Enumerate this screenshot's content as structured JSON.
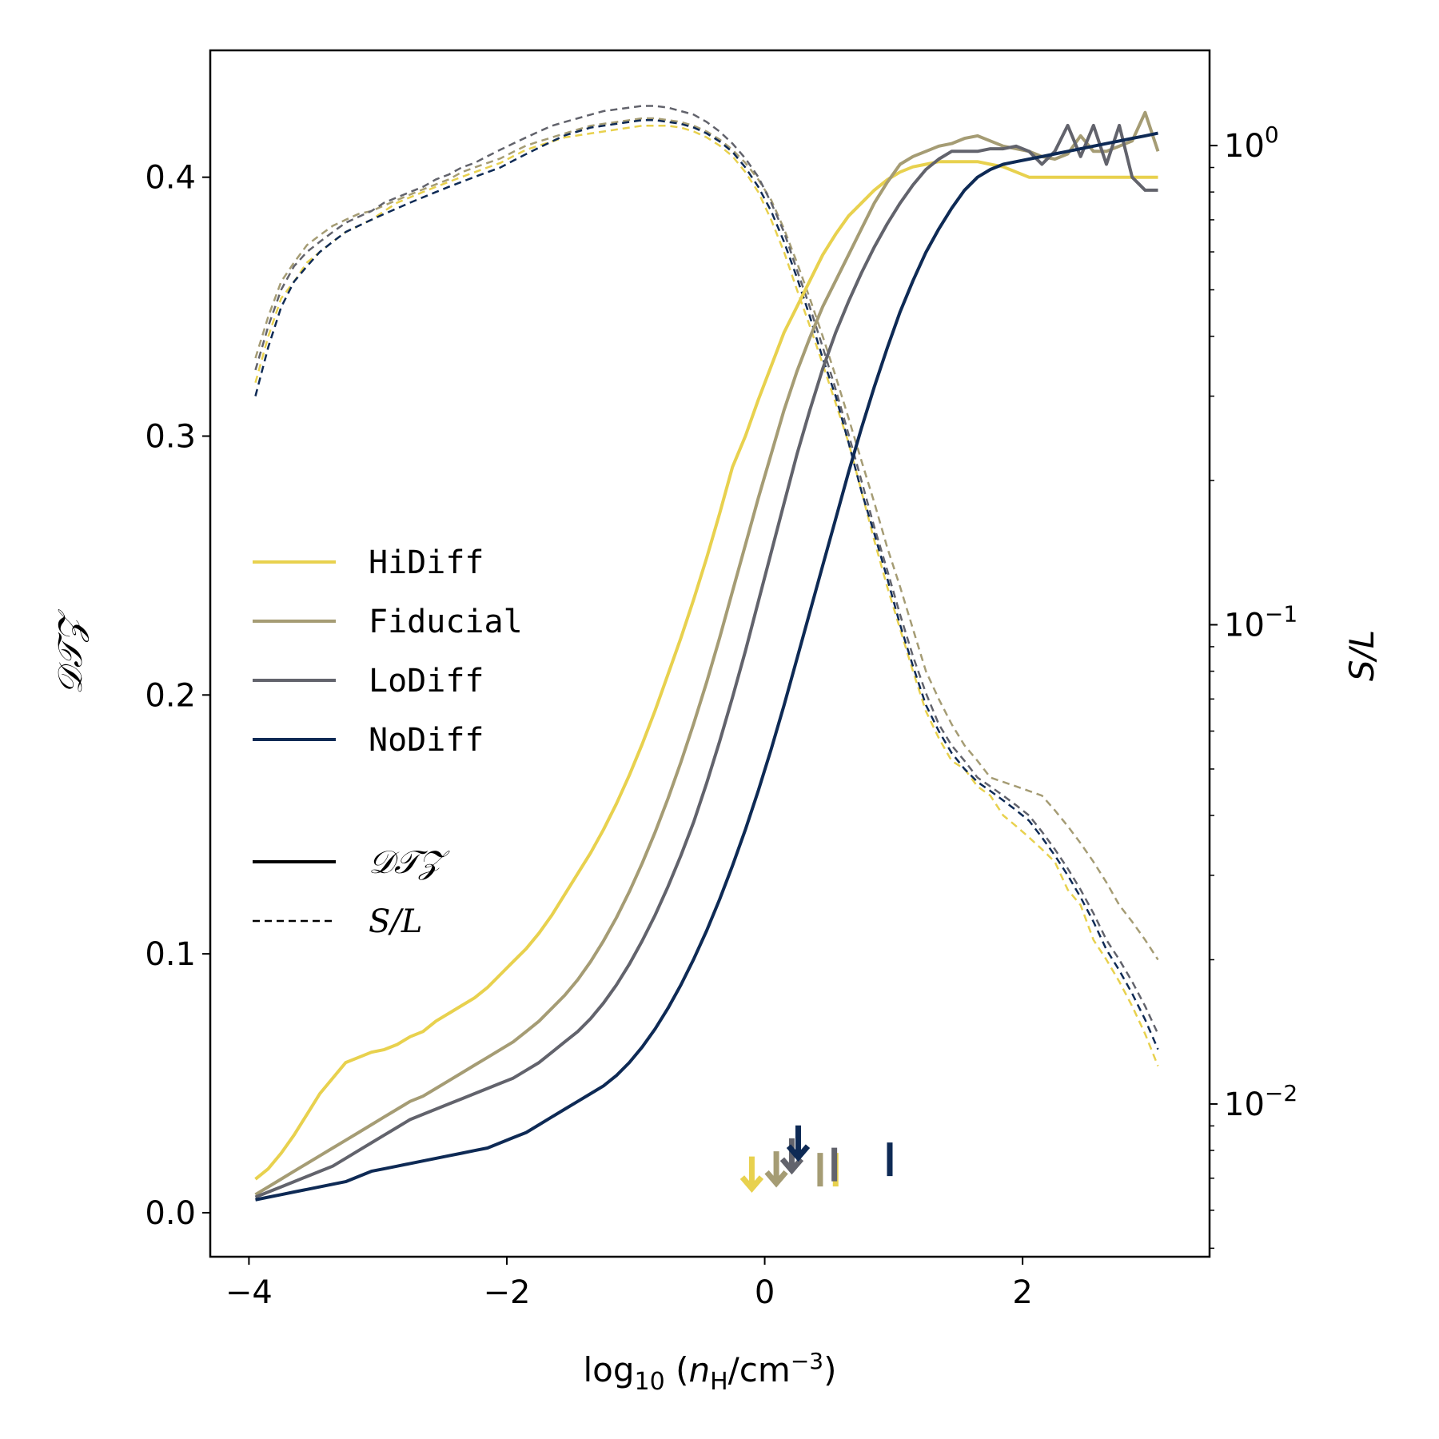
{
  "chart_data": {
    "type": "line",
    "x_axis": {
      "label": "log10 (n_H/cm^-3)",
      "label_parts": {
        "base": "log",
        "sub": "10",
        "open": " (",
        "var": "n",
        "var_sub": "H",
        "unit": "/cm",
        "unit_sup": "−3",
        "close": ")"
      },
      "xlim": [
        -4.3,
        3.45
      ],
      "ticks": [
        -4,
        -2,
        0,
        2
      ],
      "tick_labels": [
        "−4",
        "−2",
        "0",
        "2"
      ]
    },
    "y_left": {
      "label": "DTZ",
      "label_display": "𝒟𝒯𝒵",
      "ylim": [
        -0.017,
        0.449
      ],
      "ticks": [
        0.0,
        0.1,
        0.2,
        0.3,
        0.4
      ],
      "tick_labels": [
        "0.0",
        "0.1",
        "0.2",
        "0.3",
        "0.4"
      ]
    },
    "y_right": {
      "label": "S/L",
      "scale": "log",
      "ylim": [
        0.0048,
        1.58
      ],
      "ticks": [
        0.01,
        0.1,
        1.0
      ],
      "tick_labels": [
        {
          "base": "10",
          "exp": "−2"
        },
        {
          "base": "10",
          "exp": "−1"
        },
        {
          "base": "10",
          "exp": "0"
        }
      ]
    },
    "x": [
      -3.95,
      -3.85,
      -3.75,
      -3.65,
      -3.55,
      -3.45,
      -3.35,
      -3.25,
      -3.15,
      -3.05,
      -2.95,
      -2.85,
      -2.75,
      -2.65,
      -2.55,
      -2.45,
      -2.35,
      -2.25,
      -2.15,
      -2.05,
      -1.95,
      -1.85,
      -1.75,
      -1.65,
      -1.55,
      -1.45,
      -1.35,
      -1.25,
      -1.15,
      -1.05,
      -0.95,
      -0.85,
      -0.75,
      -0.65,
      -0.55,
      -0.45,
      -0.35,
      -0.25,
      -0.15,
      -0.05,
      0.05,
      0.15,
      0.25,
      0.35,
      0.45,
      0.55,
      0.65,
      0.75,
      0.85,
      0.95,
      1.05,
      1.15,
      1.25,
      1.35,
      1.45,
      1.55,
      1.65,
      1.75,
      1.85,
      1.95,
      2.05,
      2.15,
      2.25,
      2.35,
      2.45,
      2.55,
      2.65,
      2.75,
      2.85,
      2.95,
      3.05
    ],
    "series": [
      {
        "name": "HiDiff",
        "color": "#e8d14e",
        "dtz": [
          0.013,
          0.017,
          0.023,
          0.03,
          0.038,
          0.046,
          0.052,
          0.058,
          0.06,
          0.062,
          0.063,
          0.065,
          0.068,
          0.07,
          0.074,
          0.077,
          0.08,
          0.083,
          0.087,
          0.092,
          0.097,
          0.102,
          0.108,
          0.115,
          0.123,
          0.131,
          0.139,
          0.148,
          0.158,
          0.169,
          0.181,
          0.194,
          0.208,
          0.222,
          0.237,
          0.253,
          0.27,
          0.288,
          0.3,
          0.314,
          0.327,
          0.34,
          0.35,
          0.36,
          0.37,
          0.378,
          0.385,
          0.39,
          0.395,
          0.399,
          0.402,
          0.404,
          0.405,
          0.406,
          0.406,
          0.406,
          0.406,
          0.405,
          0.404,
          0.402,
          0.4,
          0.4,
          0.4,
          0.4,
          0.4,
          0.4,
          0.4,
          0.4,
          0.4,
          0.4,
          0.4
        ],
        "sl": [
          0.32,
          0.4,
          0.48,
          0.52,
          0.57,
          0.6,
          0.63,
          0.66,
          0.68,
          0.7,
          0.73,
          0.76,
          0.78,
          0.8,
          0.82,
          0.84,
          0.86,
          0.88,
          0.9,
          0.92,
          0.95,
          0.98,
          1.0,
          1.02,
          1.04,
          1.05,
          1.06,
          1.07,
          1.08,
          1.09,
          1.1,
          1.1,
          1.1,
          1.09,
          1.07,
          1.04,
          1.0,
          0.95,
          0.88,
          0.8,
          0.7,
          0.6,
          0.5,
          0.42,
          0.35,
          0.29,
          0.24,
          0.19,
          0.15,
          0.12,
          0.098,
          0.08,
          0.066,
          0.058,
          0.052,
          0.05,
          0.046,
          0.044,
          0.04,
          0.038,
          0.036,
          0.034,
          0.032,
          0.028,
          0.026,
          0.022,
          0.02,
          0.018,
          0.016,
          0.014,
          0.012
        ]
      },
      {
        "name": "Fiducial",
        "color": "#a59c74",
        "dtz": [
          0.007,
          0.01,
          0.013,
          0.016,
          0.019,
          0.022,
          0.025,
          0.028,
          0.031,
          0.034,
          0.037,
          0.04,
          0.043,
          0.045,
          0.048,
          0.051,
          0.054,
          0.057,
          0.06,
          0.063,
          0.066,
          0.07,
          0.074,
          0.079,
          0.084,
          0.09,
          0.097,
          0.105,
          0.114,
          0.124,
          0.135,
          0.147,
          0.16,
          0.174,
          0.189,
          0.205,
          0.222,
          0.24,
          0.258,
          0.276,
          0.293,
          0.31,
          0.325,
          0.338,
          0.35,
          0.36,
          0.37,
          0.38,
          0.39,
          0.398,
          0.405,
          0.408,
          0.41,
          0.412,
          0.413,
          0.415,
          0.416,
          0.414,
          0.412,
          0.411,
          0.41,
          0.408,
          0.407,
          0.409,
          0.416,
          0.41,
          0.41,
          0.412,
          0.414,
          0.425,
          0.41
        ],
        "sl": [
          0.36,
          0.44,
          0.52,
          0.57,
          0.62,
          0.65,
          0.68,
          0.7,
          0.72,
          0.73,
          0.75,
          0.77,
          0.79,
          0.81,
          0.83,
          0.85,
          0.88,
          0.9,
          0.92,
          0.94,
          0.97,
          1.0,
          1.02,
          1.04,
          1.06,
          1.08,
          1.1,
          1.11,
          1.12,
          1.13,
          1.14,
          1.14,
          1.13,
          1.12,
          1.1,
          1.07,
          1.03,
          0.98,
          0.92,
          0.85,
          0.77,
          0.67,
          0.57,
          0.48,
          0.4,
          0.33,
          0.27,
          0.22,
          0.18,
          0.145,
          0.12,
          0.098,
          0.08,
          0.07,
          0.062,
          0.056,
          0.052,
          0.048,
          0.047,
          0.046,
          0.045,
          0.044,
          0.041,
          0.038,
          0.035,
          0.032,
          0.029,
          0.026,
          0.024,
          0.022,
          0.02
        ]
      },
      {
        "name": "LoDiff",
        "color": "#62636c",
        "dtz": [
          0.006,
          0.008,
          0.01,
          0.012,
          0.014,
          0.016,
          0.018,
          0.021,
          0.024,
          0.027,
          0.03,
          0.033,
          0.036,
          0.038,
          0.04,
          0.042,
          0.044,
          0.046,
          0.048,
          0.05,
          0.052,
          0.055,
          0.058,
          0.062,
          0.066,
          0.07,
          0.075,
          0.081,
          0.088,
          0.096,
          0.105,
          0.115,
          0.126,
          0.138,
          0.151,
          0.166,
          0.182,
          0.199,
          0.217,
          0.236,
          0.255,
          0.274,
          0.293,
          0.31,
          0.326,
          0.34,
          0.352,
          0.363,
          0.373,
          0.382,
          0.39,
          0.397,
          0.403,
          0.407,
          0.41,
          0.41,
          0.41,
          0.411,
          0.411,
          0.412,
          0.41,
          0.405,
          0.41,
          0.42,
          0.408,
          0.42,
          0.405,
          0.42,
          0.4,
          0.395,
          0.395
        ],
        "sl": [
          0.34,
          0.42,
          0.5,
          0.56,
          0.6,
          0.63,
          0.66,
          0.69,
          0.71,
          0.73,
          0.76,
          0.78,
          0.8,
          0.82,
          0.85,
          0.87,
          0.9,
          0.92,
          0.95,
          0.98,
          1.01,
          1.04,
          1.07,
          1.1,
          1.12,
          1.14,
          1.16,
          1.18,
          1.19,
          1.2,
          1.21,
          1.21,
          1.2,
          1.18,
          1.16,
          1.12,
          1.07,
          1.01,
          0.94,
          0.86,
          0.76,
          0.66,
          0.55,
          0.46,
          0.38,
          0.31,
          0.25,
          0.2,
          0.16,
          0.13,
          0.105,
          0.086,
          0.072,
          0.062,
          0.056,
          0.052,
          0.048,
          0.046,
          0.044,
          0.042,
          0.04,
          0.037,
          0.034,
          0.031,
          0.028,
          0.025,
          0.022,
          0.02,
          0.018,
          0.016,
          0.014
        ]
      },
      {
        "name": "NoDiff",
        "color": "#0e2a55",
        "dtz": [
          0.005,
          0.006,
          0.007,
          0.008,
          0.009,
          0.01,
          0.011,
          0.012,
          0.014,
          0.016,
          0.017,
          0.018,
          0.019,
          0.02,
          0.021,
          0.022,
          0.023,
          0.024,
          0.025,
          0.027,
          0.029,
          0.031,
          0.034,
          0.037,
          0.04,
          0.043,
          0.046,
          0.049,
          0.053,
          0.058,
          0.064,
          0.071,
          0.079,
          0.088,
          0.098,
          0.109,
          0.121,
          0.134,
          0.148,
          0.163,
          0.179,
          0.196,
          0.214,
          0.232,
          0.25,
          0.268,
          0.286,
          0.303,
          0.319,
          0.334,
          0.348,
          0.36,
          0.371,
          0.38,
          0.388,
          0.395,
          0.4,
          0.403,
          0.405,
          0.406,
          0.407,
          0.408,
          0.409,
          0.41,
          0.411,
          0.412,
          0.413,
          0.414,
          0.415,
          0.416,
          0.417
        ],
        "sl": [
          0.3,
          0.38,
          0.46,
          0.52,
          0.56,
          0.6,
          0.63,
          0.66,
          0.68,
          0.7,
          0.72,
          0.74,
          0.76,
          0.78,
          0.8,
          0.82,
          0.84,
          0.86,
          0.88,
          0.9,
          0.93,
          0.96,
          0.99,
          1.02,
          1.05,
          1.07,
          1.09,
          1.1,
          1.11,
          1.12,
          1.13,
          1.13,
          1.12,
          1.11,
          1.09,
          1.06,
          1.02,
          0.97,
          0.9,
          0.82,
          0.73,
          0.63,
          0.53,
          0.44,
          0.36,
          0.3,
          0.24,
          0.19,
          0.155,
          0.125,
          0.1,
          0.082,
          0.068,
          0.06,
          0.054,
          0.05,
          0.047,
          0.045,
          0.043,
          0.041,
          0.039,
          0.036,
          0.033,
          0.03,
          0.027,
          0.024,
          0.021,
          0.019,
          0.017,
          0.015,
          0.013
        ]
      }
    ],
    "markers": [
      {
        "series": "HiDiff",
        "kind": "arrow",
        "x": -0.1,
        "y": 0.01
      },
      {
        "series": "Fiducial",
        "kind": "arrow",
        "x": 0.09,
        "y": 0.012
      },
      {
        "series": "LoDiff",
        "kind": "arrow",
        "x": 0.21,
        "y": 0.017
      },
      {
        "series": "NoDiff",
        "kind": "arrow",
        "x": 0.26,
        "y": 0.022
      },
      {
        "series": "HiDiff",
        "kind": "bar",
        "x": 0.55,
        "y": 0.012
      },
      {
        "series": "Fiducial",
        "kind": "bar",
        "x": 0.43,
        "y": 0.012
      },
      {
        "series": "LoDiff",
        "kind": "bar",
        "x": 0.54,
        "y": 0.014
      },
      {
        "series": "NoDiff",
        "kind": "bar",
        "x": 0.97,
        "y": 0.016
      }
    ],
    "legend": {
      "position": "center-left",
      "entries": [
        "HiDiff",
        "Fiducial",
        "LoDiff",
        "NoDiff"
      ],
      "style_entries": [
        {
          "line": "solid",
          "label": "𝒟𝒯𝒵"
        },
        {
          "line": "dashed",
          "label": "S/L"
        }
      ]
    }
  }
}
